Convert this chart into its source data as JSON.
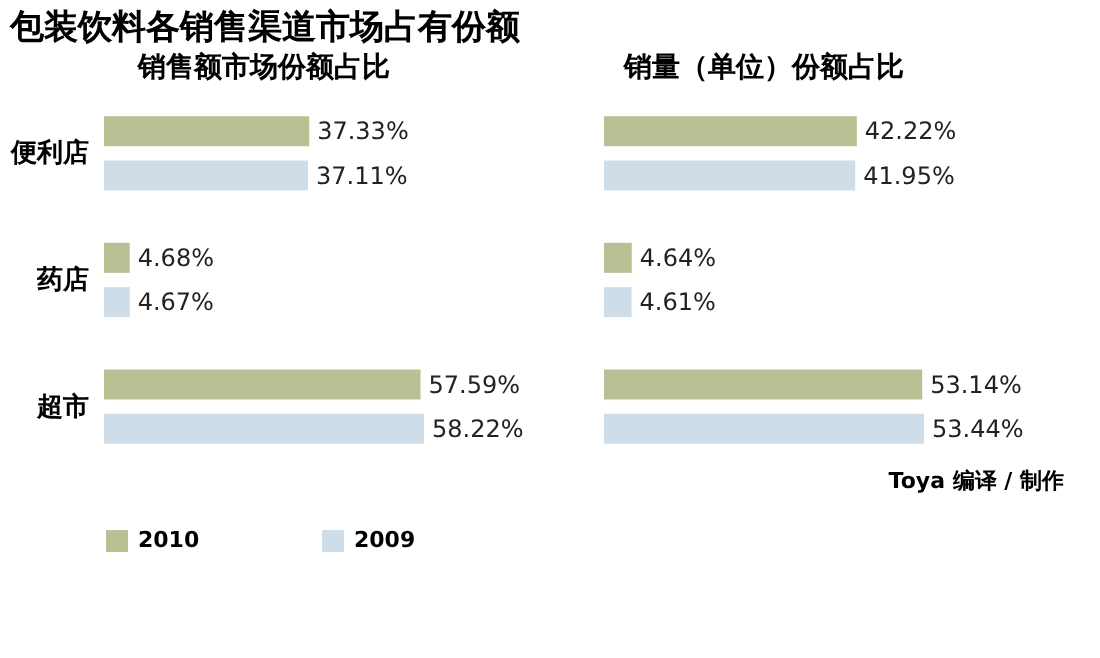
{
  "chart_data": [
    {
      "type": "bar",
      "orientation": "horizontal",
      "title": "包装饮料各销售渠道市场占有份额",
      "subtitle": "销售额市场份额占比",
      "categories": [
        "便利店",
        "药店",
        "超市"
      ],
      "legend": "bottom",
      "annotations": [
        "Toya 编译 / 制作"
      ],
      "series": [
        {
          "name": "2010",
          "color": "#b8c193",
          "values": [
            37.33,
            4.68,
            57.59
          ],
          "value_labels": [
            "37.33%",
            "4.68%",
            "57.59%"
          ]
        },
        {
          "name": "2009",
          "color": "#cfdde8",
          "values": [
            37.11,
            4.67,
            58.22
          ],
          "value_labels": [
            "37.11%",
            "4.67%",
            "58.22%"
          ]
        }
      ]
    },
    {
      "type": "bar",
      "orientation": "horizontal",
      "subtitle": "销量（单位）份额占比",
      "categories": [
        null,
        null,
        null
      ],
      "tick_labels": false,
      "series": [
        {
          "name": "2010",
          "color": "#b8c193",
          "values": [
            42.22,
            4.64,
            53.14
          ],
          "value_labels": [
            "42.22%",
            "4.64%",
            "53.14%"
          ]
        },
        {
          "name": "2009",
          "color": "#cfdde8",
          "values": [
            41.95,
            4.61,
            53.44
          ],
          "value_labels": [
            "41.95%",
            "4.61%",
            "53.44%"
          ]
        }
      ]
    }
  ]
}
